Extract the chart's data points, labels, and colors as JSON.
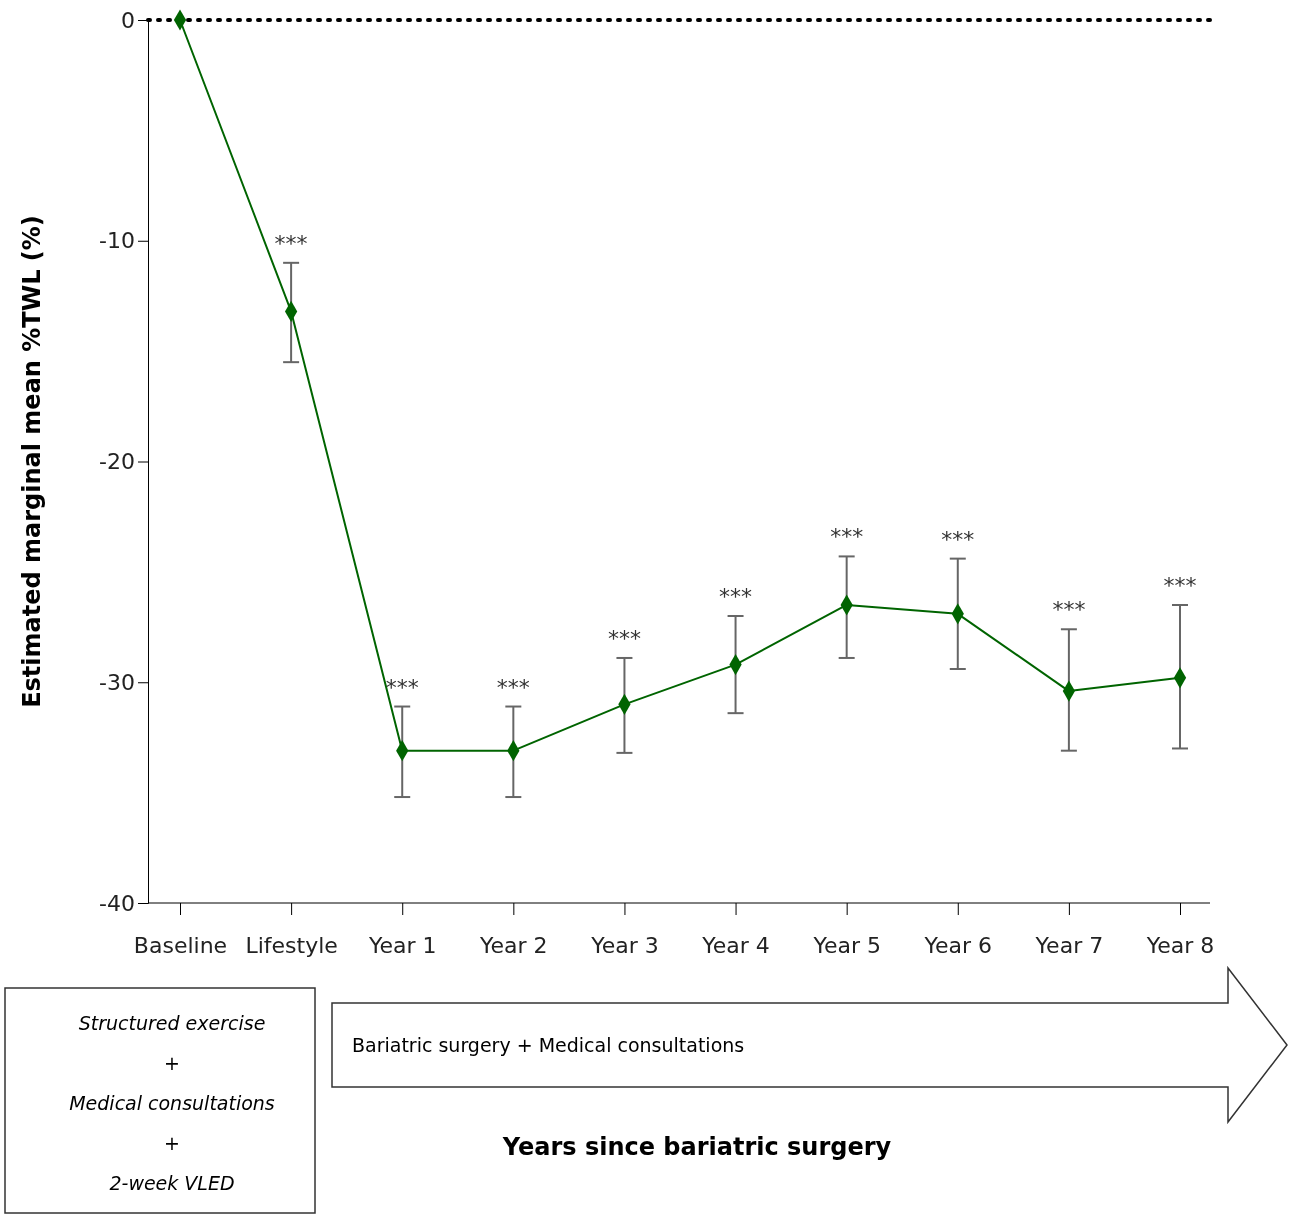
{
  "chart_data": {
    "type": "line",
    "ylabel": "Estimated marginal mean %TWL (%)",
    "categories": [
      "Baseline",
      "Lifestyle",
      "Year 1",
      "Year 2",
      "Year 3",
      "Year 4",
      "Year 5",
      "Year 6",
      "Year 7",
      "Year 8"
    ],
    "series": [
      {
        "color": "#006400",
        "values": [
          0,
          -13.2,
          -33.1,
          -33.1,
          -31.0,
          -29.2,
          -26.5,
          -26.9,
          -30.4,
          -29.8
        ],
        "errors": [
          null,
          [
            -15.5,
            -11.0
          ],
          [
            -35.2,
            -31.1
          ],
          [
            -35.2,
            -31.1
          ],
          [
            -33.2,
            -28.9
          ],
          [
            -31.4,
            -27.0
          ],
          [
            -28.9,
            -24.3
          ],
          [
            -29.4,
            -24.4
          ],
          [
            -33.1,
            -27.6
          ],
          [
            -33.0,
            -26.5
          ]
        ]
      }
    ],
    "ylim": [
      -40,
      0
    ],
    "yticks": [
      -40,
      -30,
      -20,
      -10,
      0
    ],
    "marker": "diamond",
    "line_style": "solid",
    "grid": false,
    "ref_lines": [
      {
        "axis": "y",
        "value": 0,
        "color": "#000000",
        "line_style": "dotted"
      }
    ],
    "annotations": [
      {
        "text": "***",
        "x": "Lifestyle",
        "y": -11.0
      },
      {
        "text": "***",
        "x": "Year 1",
        "y": -31.1
      },
      {
        "text": "***",
        "x": "Year 2",
        "y": -31.1
      },
      {
        "text": "***",
        "x": "Year 3",
        "y": -28.9
      },
      {
        "text": "***",
        "x": "Year 4",
        "y": -27.0
      },
      {
        "text": "***",
        "x": "Year 5",
        "y": -24.3
      },
      {
        "text": "***",
        "x": "Year 6",
        "y": -24.4
      },
      {
        "text": "***",
        "x": "Year 7",
        "y": -27.6
      },
      {
        "text": "***",
        "x": "Year 8",
        "y": -26.5
      },
      "Structured exercise",
      "+",
      "Medical consultations",
      "+",
      "2-week VLED",
      "Bariatric surgery + Medical consultations",
      "Years since bariatric surgery"
    ]
  }
}
